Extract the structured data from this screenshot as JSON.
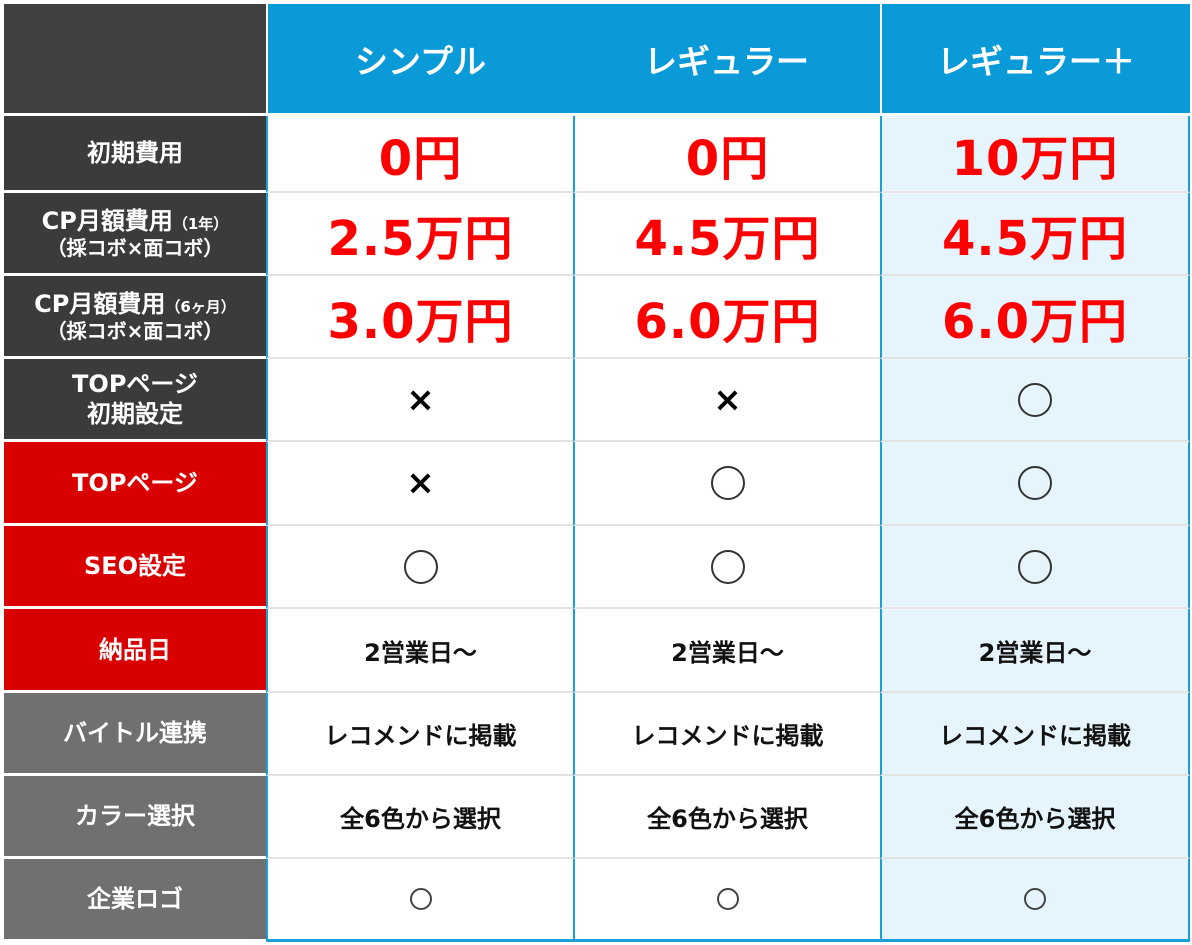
{
  "plans": [
    "シンプル",
    "レギュラー",
    "レギュラー＋"
  ],
  "rows": {
    "initial_cost": {
      "label": "初期費用",
      "values": [
        "0円",
        "0円",
        "10万円"
      ]
    },
    "cp_1year": {
      "label_main": "CP月額費用",
      "label_note": "（1年）",
      "label_sub": "（採コボ×面コボ）",
      "values": [
        "2.5万円",
        "4.5万円",
        "4.5万円"
      ]
    },
    "cp_6month": {
      "label_main": "CP月額費用",
      "label_note": "（6ヶ月）",
      "label_sub": "（採コボ×面コボ）",
      "values": [
        "3.0万円",
        "6.0万円",
        "6.0万円"
      ]
    },
    "top_initial": {
      "label_line1": "TOPページ",
      "label_line2": "初期設定",
      "values": [
        "cross",
        "cross",
        "circle"
      ]
    },
    "top_page": {
      "label": "TOPページ",
      "values": [
        "cross",
        "circle",
        "circle"
      ]
    },
    "seo": {
      "label": "SEO設定",
      "values": [
        "circle",
        "circle",
        "circle"
      ]
    },
    "delivery": {
      "label": "納品日",
      "values": [
        "2営業日～",
        "2営業日～",
        "2営業日～"
      ]
    },
    "baitoru": {
      "label": "バイトル連携",
      "values": [
        "レコメンドに掲載",
        "レコメンドに掲載",
        "レコメンドに掲載"
      ]
    },
    "color": {
      "label": "カラー選択",
      "values": [
        "全6色から選択",
        "全6色から選択",
        "全6色から選択"
      ]
    },
    "logo": {
      "label": "企業ロゴ",
      "values": [
        "circle-small",
        "circle-small",
        "circle-small"
      ]
    }
  },
  "symbols": {
    "cross": "×"
  },
  "colors": {
    "header_blue": "#0a9ad8",
    "price_red": "#ff0000",
    "row_red": "#d90000",
    "row_dark": "#3b3b3b",
    "row_gray": "#707070",
    "highlight_col": "#e6f4fd"
  }
}
